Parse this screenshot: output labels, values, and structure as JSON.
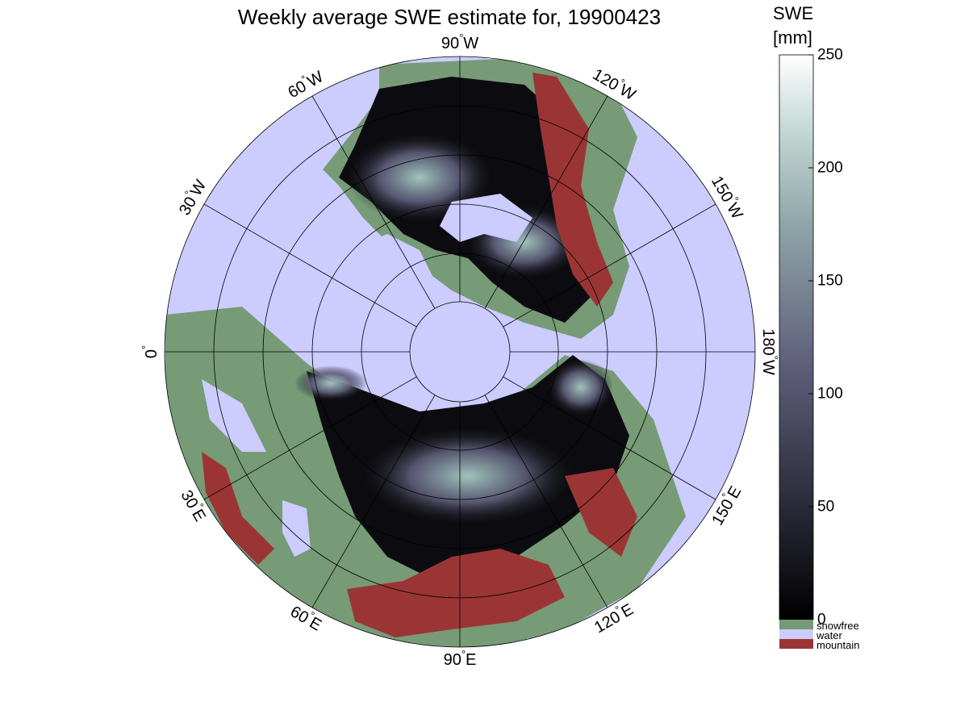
{
  "title": "Weekly average SWE estimate for, 19900423",
  "colors": {
    "water": "#ccccff",
    "snowfree": "#769b76",
    "mountain": "#9b3535",
    "snow_low": "#0c0c10",
    "snow_mid": "#5e5e7a",
    "snow_high": "#a8cdc6",
    "snow_max": "#ffffff"
  },
  "meridian_labels": [
    {
      "text": "90",
      "unit": "°",
      "dir": "W",
      "lon": 90
    },
    {
      "text": "120",
      "unit": "°",
      "dir": "W",
      "lon": 120
    },
    {
      "text": "150",
      "unit": "°",
      "dir": "W",
      "lon": 150
    },
    {
      "text": "180",
      "unit": "°",
      "dir": "W",
      "lon": 180
    },
    {
      "text": "150",
      "unit": "°",
      "dir": "E",
      "lon": 210
    },
    {
      "text": "120",
      "unit": "°",
      "dir": "E",
      "lon": 240
    },
    {
      "text": "90",
      "unit": "°",
      "dir": "E",
      "lon": 270
    },
    {
      "text": "60",
      "unit": "°",
      "dir": "E",
      "lon": 300
    },
    {
      "text": "30",
      "unit": "°",
      "dir": "E",
      "lon": 330
    },
    {
      "text": "0",
      "unit": "°",
      "dir": "",
      "lon": 0
    },
    {
      "text": "30",
      "unit": "°",
      "dir": "W",
      "lon": 30
    },
    {
      "text": "60",
      "unit": "°",
      "dir": "W",
      "lon": 60
    }
  ],
  "colorbar": {
    "title_line1": "SWE",
    "title_line2": "[mm]",
    "min": 0,
    "max": 250,
    "ticks": [
      "0",
      "50",
      "100",
      "150",
      "200",
      "250"
    ]
  },
  "legend": {
    "snowfree": "snowfree",
    "water": "water",
    "mountain": "mountain"
  }
}
